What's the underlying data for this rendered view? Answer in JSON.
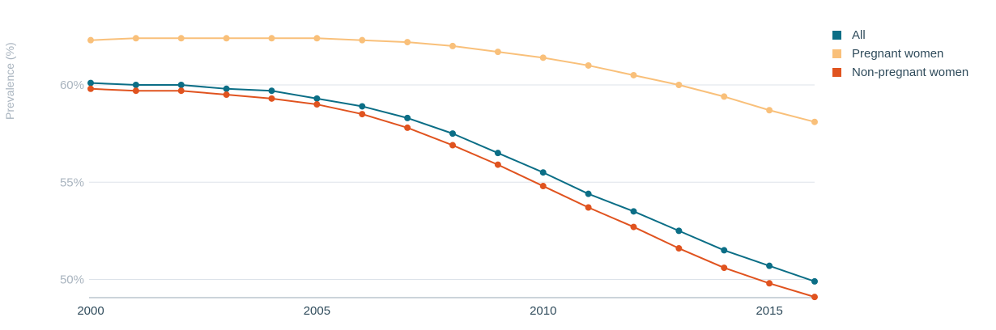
{
  "chart_data": {
    "type": "line",
    "title": "",
    "xlabel": "",
    "ylabel": "Prevalence (%)",
    "x": [
      2000,
      2001,
      2002,
      2003,
      2004,
      2005,
      2006,
      2007,
      2008,
      2009,
      2010,
      2011,
      2012,
      2013,
      2014,
      2015,
      2016
    ],
    "xticks": [
      2000,
      2005,
      2010,
      2015
    ],
    "xtick_labels": [
      "2000",
      "2005",
      "2010",
      "2015"
    ],
    "yticks": [
      50,
      55,
      60
    ],
    "ytick_labels": [
      "50%",
      "55%",
      "60%"
    ],
    "xlim": [
      2000,
      2016
    ],
    "ylim": [
      49.0,
      63.5
    ],
    "grid": "horizontal",
    "legend_position": "top-right",
    "series": [
      {
        "name": "All",
        "color": "#0b6e86",
        "values": [
          60.1,
          60.0,
          60.0,
          59.8,
          59.7,
          59.3,
          58.9,
          58.3,
          57.5,
          56.5,
          55.5,
          54.4,
          53.5,
          52.5,
          51.5,
          50.7,
          49.9
        ]
      },
      {
        "name": "Pregnant women",
        "color": "#f9c07a",
        "values": [
          62.3,
          62.4,
          62.4,
          62.4,
          62.4,
          62.4,
          62.3,
          62.2,
          62.0,
          61.7,
          61.4,
          61.0,
          60.5,
          60.0,
          59.4,
          58.7,
          58.1
        ]
      },
      {
        "name": "Non-pregnant women",
        "color": "#e0531f",
        "values": [
          59.8,
          59.7,
          59.7,
          59.5,
          59.3,
          59.0,
          58.5,
          57.8,
          56.9,
          55.9,
          54.8,
          53.7,
          52.7,
          51.6,
          50.6,
          49.8,
          49.1
        ]
      }
    ]
  }
}
